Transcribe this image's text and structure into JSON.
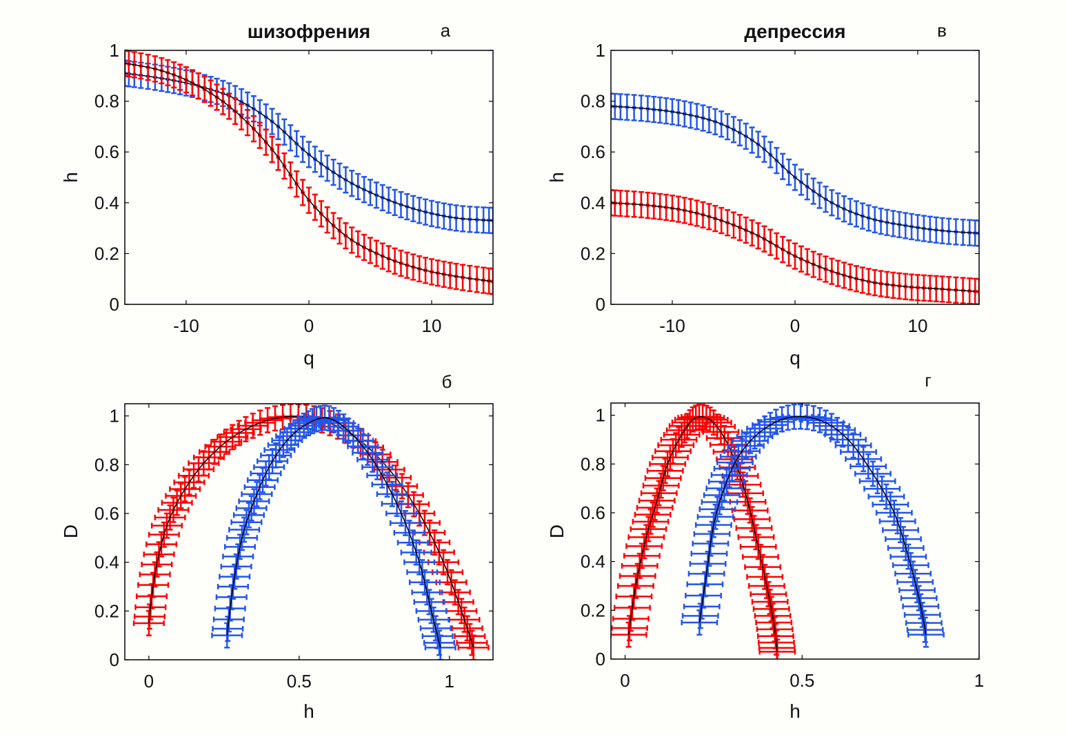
{
  "figure": {
    "background": "#fefefa",
    "colors": {
      "series_a": "#ff0000",
      "series_b": "#2255ee",
      "fit_line": "#000000",
      "fit_line_alt": "#22aa22"
    }
  },
  "chart_data": [
    {
      "id": "a",
      "type": "line",
      "title": "шизофрения",
      "panel_letter": "а",
      "xlabel": "q",
      "ylabel": "h",
      "xlim": [
        -15,
        15
      ],
      "ylim": [
        0,
        1
      ],
      "xticks": [
        -10,
        0,
        10
      ],
      "xtick_labels": [
        "-10",
        "0",
        "10"
      ],
      "yticks": [
        0,
        0.2,
        0.4,
        0.6,
        0.8,
        1
      ],
      "ytick_labels": [
        "0",
        "0.2",
        "0.4",
        "0.6",
        "0.8",
        "1"
      ],
      "grid": false,
      "error_bars": "vertical",
      "x": [
        -15,
        -12,
        -9,
        -6,
        -3,
        0,
        3,
        6,
        9,
        12,
        15
      ],
      "series": [
        {
          "name": "blue",
          "color": "#2255ee",
          "values": [
            0.91,
            0.89,
            0.86,
            0.81,
            0.72,
            0.59,
            0.49,
            0.42,
            0.37,
            0.34,
            0.33
          ],
          "errors": [
            0.05,
            0.05,
            0.05,
            0.05,
            0.05,
            0.05,
            0.05,
            0.05,
            0.05,
            0.05,
            0.05
          ]
        },
        {
          "name": "red",
          "color": "#ff0000",
          "values": [
            0.95,
            0.92,
            0.86,
            0.76,
            0.61,
            0.41,
            0.27,
            0.19,
            0.14,
            0.11,
            0.09
          ],
          "errors": [
            0.05,
            0.05,
            0.05,
            0.05,
            0.05,
            0.05,
            0.05,
            0.05,
            0.05,
            0.05,
            0.05
          ]
        }
      ]
    },
    {
      "id": "v",
      "type": "line",
      "title": "депрессия",
      "panel_letter": "в",
      "xlabel": "q",
      "ylabel": "h",
      "xlim": [
        -15,
        15
      ],
      "ylim": [
        0,
        1
      ],
      "xticks": [
        -10,
        0,
        10
      ],
      "xtick_labels": [
        "-10",
        "0",
        "10"
      ],
      "yticks": [
        0,
        0.2,
        0.4,
        0.6,
        0.8,
        1
      ],
      "ytick_labels": [
        "0",
        "0.2",
        "0.4",
        "0.6",
        "0.8",
        "1"
      ],
      "grid": false,
      "error_bars": "vertical",
      "x": [
        -15,
        -12,
        -9,
        -6,
        -3,
        0,
        3,
        6,
        9,
        12,
        15
      ],
      "series": [
        {
          "name": "blue",
          "color": "#2255ee",
          "values": [
            0.78,
            0.77,
            0.75,
            0.71,
            0.63,
            0.5,
            0.4,
            0.34,
            0.31,
            0.29,
            0.28
          ],
          "errors": [
            0.05,
            0.05,
            0.05,
            0.05,
            0.05,
            0.05,
            0.05,
            0.05,
            0.05,
            0.05,
            0.05
          ]
        },
        {
          "name": "red",
          "color": "#ff0000",
          "values": [
            0.4,
            0.39,
            0.37,
            0.33,
            0.27,
            0.19,
            0.13,
            0.09,
            0.07,
            0.06,
            0.05
          ],
          "errors": [
            0.05,
            0.05,
            0.05,
            0.05,
            0.05,
            0.05,
            0.05,
            0.05,
            0.05,
            0.05,
            0.05
          ]
        }
      ]
    },
    {
      "id": "b",
      "type": "line",
      "title": "",
      "panel_letter": "б",
      "xlabel": "h",
      "ylabel": "D",
      "xlim": [
        -0.08,
        1.145
      ],
      "ylim": [
        0,
        1.05
      ],
      "xticks": [
        0,
        0.5,
        1
      ],
      "xtick_labels": [
        "0",
        "0.5",
        "1"
      ],
      "yticks": [
        0,
        0.2,
        0.4,
        0.6,
        0.8,
        1
      ],
      "ytick_labels": [
        "0",
        "0.2",
        "0.4",
        "0.6",
        "0.8",
        "1"
      ],
      "grid": false,
      "error_bars": "both",
      "series": [
        {
          "name": "red",
          "color": "#ff0000",
          "x": [
            0.0,
            0.02,
            0.06,
            0.12,
            0.2,
            0.3,
            0.42,
            0.55,
            0.68,
            0.8,
            0.9,
            0.98,
            1.04,
            1.08
          ],
          "y": [
            0.15,
            0.35,
            0.55,
            0.7,
            0.83,
            0.93,
            0.99,
            0.99,
            0.92,
            0.78,
            0.6,
            0.4,
            0.2,
            0.05
          ],
          "xerr": 0.05,
          "yerr": 0.05
        },
        {
          "name": "blue",
          "color": "#2255ee",
          "x": [
            0.26,
            0.28,
            0.31,
            0.35,
            0.4,
            0.46,
            0.53,
            0.6,
            0.68,
            0.76,
            0.84,
            0.9,
            0.94,
            0.97
          ],
          "y": [
            0.1,
            0.3,
            0.5,
            0.65,
            0.79,
            0.9,
            0.97,
            0.99,
            0.92,
            0.79,
            0.6,
            0.4,
            0.2,
            0.05
          ],
          "xerr": 0.05,
          "yerr": 0.05
        }
      ]
    },
    {
      "id": "g",
      "type": "line",
      "title": "",
      "panel_letter": "г",
      "xlabel": "h",
      "ylabel": "D",
      "xlim": [
        -0.04,
        1
      ],
      "ylim": [
        0,
        1.05
      ],
      "xticks": [
        0,
        0.5,
        1
      ],
      "xtick_labels": [
        "0",
        "0.5",
        "1"
      ],
      "yticks": [
        0,
        0.2,
        0.4,
        0.6,
        0.8,
        1
      ],
      "ytick_labels": [
        "0",
        "0.2",
        "0.4",
        "0.6",
        "0.8",
        "1"
      ],
      "grid": false,
      "error_bars": "both",
      "series": [
        {
          "name": "red",
          "color": "#ff0000",
          "x": [
            0.01,
            0.03,
            0.06,
            0.09,
            0.12,
            0.16,
            0.2,
            0.25,
            0.3,
            0.34,
            0.37,
            0.4,
            0.42,
            0.43
          ],
          "y": [
            0.1,
            0.3,
            0.5,
            0.65,
            0.8,
            0.92,
            0.99,
            0.97,
            0.85,
            0.68,
            0.5,
            0.3,
            0.15,
            0.03
          ],
          "xerr": 0.05,
          "yerr": 0.05
        },
        {
          "name": "blue",
          "color": "#2255ee",
          "x": [
            0.21,
            0.23,
            0.25,
            0.28,
            0.32,
            0.38,
            0.46,
            0.55,
            0.63,
            0.7,
            0.76,
            0.8,
            0.83,
            0.85
          ],
          "y": [
            0.15,
            0.35,
            0.55,
            0.7,
            0.83,
            0.93,
            0.99,
            0.98,
            0.9,
            0.76,
            0.6,
            0.42,
            0.25,
            0.1
          ],
          "xerr": 0.05,
          "yerr": 0.05
        }
      ]
    }
  ]
}
